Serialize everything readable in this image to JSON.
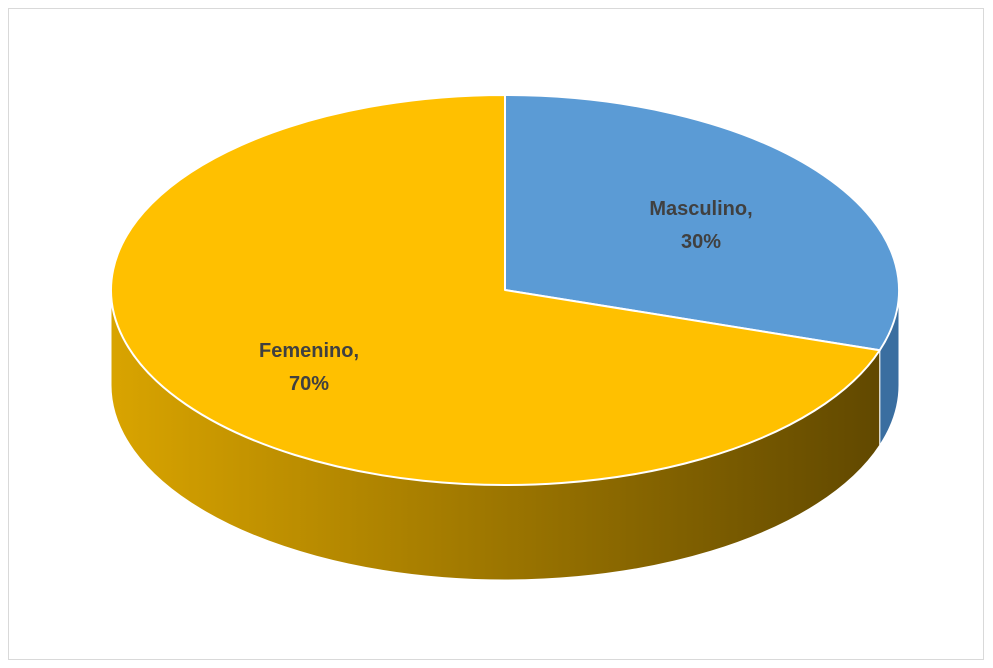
{
  "chart_data": {
    "type": "pie",
    "style": "3d",
    "title": "",
    "slices": [
      {
        "label": "Masculino",
        "value": 30,
        "value_label": "30%",
        "color": "#5B9BD5"
      },
      {
        "label": "Femenino",
        "value": 70,
        "value_label": "70%",
        "color": "#FFC000"
      }
    ],
    "side_colors": {
      "Femenino": {
        "light": "#D9A400",
        "dark": "#5E4600"
      },
      "Masculino": {
        "dark": "#3A6EA0"
      }
    },
    "legend": "none",
    "data_labels": "inside"
  }
}
